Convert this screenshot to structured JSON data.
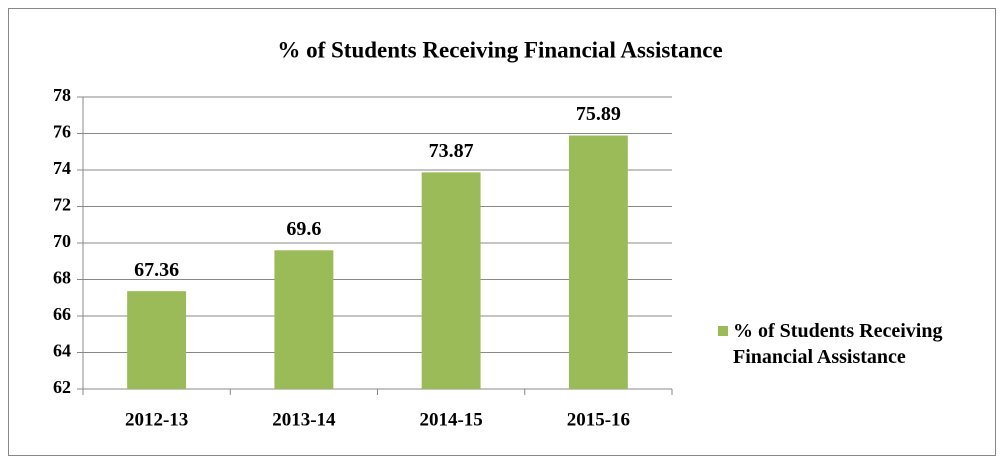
{
  "chart_data": {
    "type": "bar",
    "title": "% of Students Receiving Financial Assistance",
    "categories": [
      "2012-13",
      "2013-14",
      "2014-15",
      "2015-16"
    ],
    "series": [
      {
        "name": "% of Students Receiving Financial Assistance",
        "color": "#9bbb59",
        "values": [
          67.36,
          69.6,
          73.87,
          75.89
        ]
      }
    ],
    "ylim": [
      62,
      78
    ],
    "yticks": [
      62,
      64,
      66,
      68,
      70,
      72,
      74,
      76,
      78
    ],
    "grid": true,
    "legend": "right"
  }
}
